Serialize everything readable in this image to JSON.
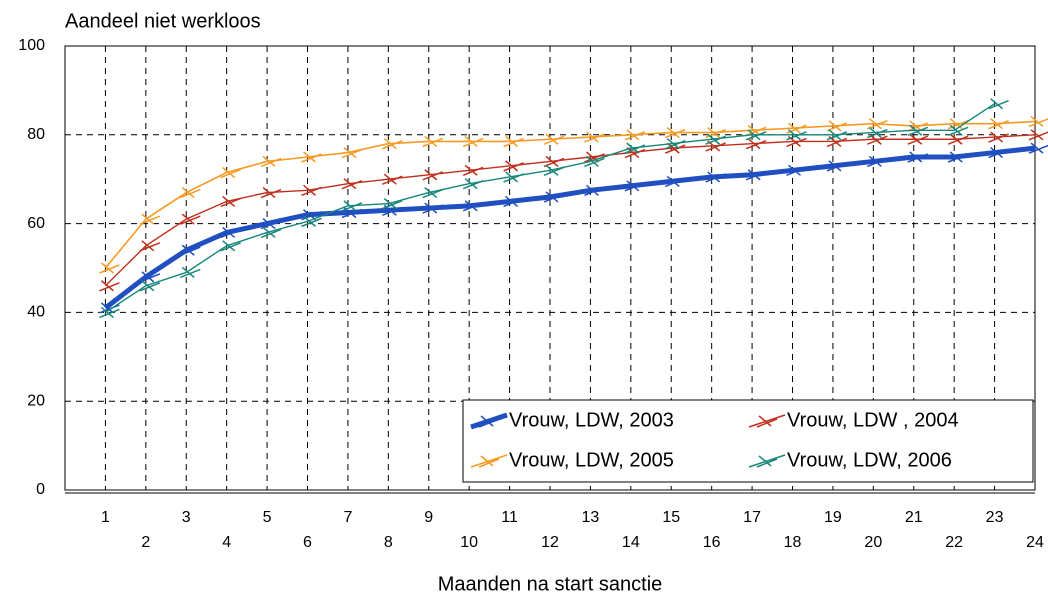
{
  "chart_data": {
    "type": "line",
    "title": "Aandeel niet werkloos",
    "xlabel": "Maanden na start sanctie",
    "x": [
      1,
      2,
      3,
      4,
      5,
      6,
      7,
      8,
      9,
      10,
      11,
      12,
      13,
      14,
      15,
      16,
      17,
      18,
      19,
      20,
      21,
      22,
      23,
      24
    ],
    "xlim": [
      0,
      24
    ],
    "ylim": [
      0,
      100
    ],
    "yticks": [
      0,
      20,
      40,
      60,
      80,
      100
    ],
    "grid": true,
    "legend": "lower right",
    "series": [
      {
        "name": "Vrouw, LDW, 2003",
        "color": "#1f4fc0",
        "values": [
          41,
          48,
          54,
          58,
          60,
          62,
          62.5,
          63,
          63.5,
          64,
          65,
          66,
          67.5,
          68.5,
          69.5,
          70.5,
          71,
          72,
          73,
          74,
          75,
          75,
          76,
          77
        ]
      },
      {
        "name": "Vrouw, LDW , 2004",
        "color": "#c0301c",
        "values": [
          46,
          55,
          61,
          65,
          67,
          67.5,
          69,
          70,
          71,
          72,
          73,
          74,
          75,
          76,
          77,
          77.5,
          78,
          78.5,
          78.5,
          79,
          79,
          79,
          79.5,
          80
        ]
      },
      {
        "name": "Vrouw, LDW, 2005",
        "color": "#f59a23",
        "values": [
          50,
          61,
          67,
          71.5,
          74,
          75,
          76,
          78,
          78.5,
          78.5,
          78.5,
          79,
          79.5,
          80,
          80.5,
          80.5,
          81,
          81.5,
          82,
          82.5,
          82,
          82.5,
          82.5,
          83
        ]
      },
      {
        "name": "Vrouw, LDW, 2006",
        "color": "#16877a",
        "values": [
          40,
          46,
          49,
          55,
          58,
          60.5,
          64,
          64.5,
          67,
          69,
          70.5,
          72,
          74,
          77,
          78,
          79,
          80,
          80,
          80,
          80.5,
          81,
          81,
          87,
          null
        ]
      }
    ]
  }
}
